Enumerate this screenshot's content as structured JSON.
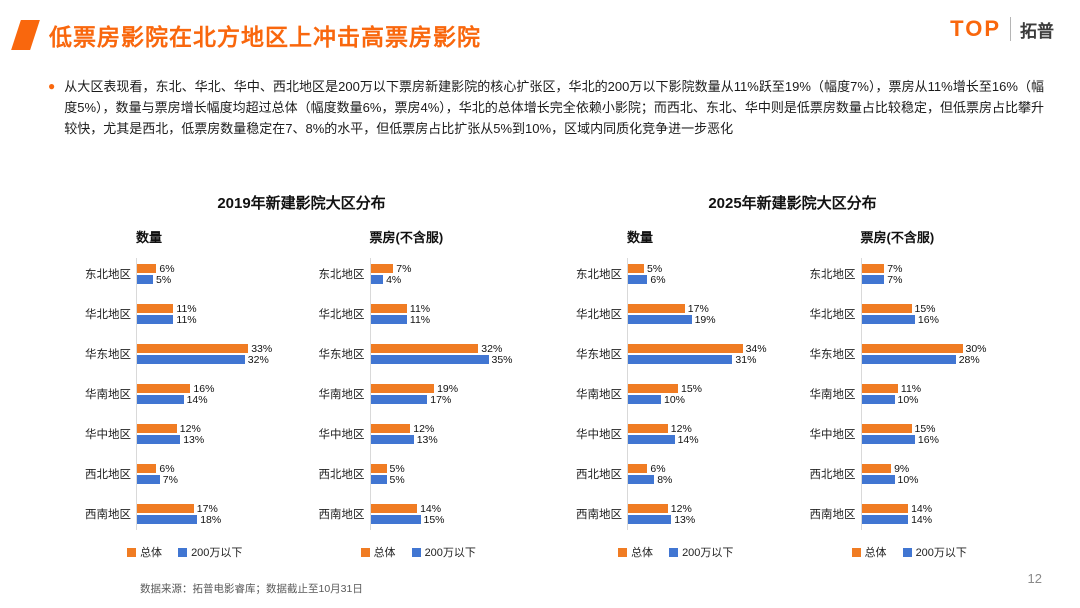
{
  "header": {
    "title": "低票房影院在北方地区上冲击高票房影院",
    "logo": {
      "brand": "TOP",
      "name_cn": "拓普"
    }
  },
  "body": {
    "bullet": "●",
    "paragraph": "从大区表现看，东北、华北、华中、西北地区是200万以下票房新建影院的核心扩张区，华北的200万以下影院数量从11%跃至19%（幅度7%），票房从11%增长至16%（幅度5%），数量与票房增长幅度均超过总体（幅度数量6%，票房4%），华北的总体增长完全依赖小影院；而西北、东北、华中则是低票房数量占比较稳定，但低票房占比攀升较快，尤其是西北，低票房数量稳定在7、8%的水平，但低票房占比扩张从5%到10%，区域内同质化竞争进一步恶化"
  },
  "colors": {
    "accent_orange": "#f9670d",
    "bar_orange": "#f07c23",
    "bar_blue": "#4176d2"
  },
  "group_titles": [
    "2019年新建影院大区分布",
    "2025年新建影院大区分布"
  ],
  "chart_data": [
    {
      "type": "bar",
      "orientation": "horizontal",
      "group": "2019年新建影院大区分布",
      "title": "数量",
      "unit": "%",
      "xlim": [
        0,
        35
      ],
      "categories": [
        "东北地区",
        "华北地区",
        "华东地区",
        "华南地区",
        "华中地区",
        "西北地区",
        "西南地区"
      ],
      "series": [
        {
          "name": "总体",
          "color": "#f07c23",
          "values": [
            6,
            11,
            33,
            16,
            12,
            6,
            17
          ]
        },
        {
          "name": "200万以下",
          "color": "#4176d2",
          "values": [
            5,
            11,
            32,
            14,
            13,
            7,
            18
          ]
        }
      ]
    },
    {
      "type": "bar",
      "orientation": "horizontal",
      "group": "2019年新建影院大区分布",
      "title": "票房(不含服)",
      "unit": "%",
      "xlim": [
        0,
        35
      ],
      "categories": [
        "东北地区",
        "华北地区",
        "华东地区",
        "华南地区",
        "华中地区",
        "西北地区",
        "西南地区"
      ],
      "series": [
        {
          "name": "总体",
          "color": "#f07c23",
          "values": [
            7,
            11,
            32,
            19,
            12,
            5,
            14
          ]
        },
        {
          "name": "200万以下",
          "color": "#4176d2",
          "values": [
            4,
            11,
            35,
            17,
            13,
            5,
            15
          ]
        }
      ]
    },
    {
      "type": "bar",
      "orientation": "horizontal",
      "group": "2025年新建影院大区分布",
      "title": "数量",
      "unit": "%",
      "xlim": [
        0,
        35
      ],
      "categories": [
        "东北地区",
        "华北地区",
        "华东地区",
        "华南地区",
        "华中地区",
        "西北地区",
        "西南地区"
      ],
      "series": [
        {
          "name": "总体",
          "color": "#f07c23",
          "values": [
            5,
            17,
            34,
            15,
            12,
            6,
            12
          ]
        },
        {
          "name": "200万以下",
          "color": "#4176d2",
          "values": [
            6,
            19,
            31,
            10,
            14,
            8,
            13
          ]
        }
      ]
    },
    {
      "type": "bar",
      "orientation": "horizontal",
      "group": "2025年新建影院大区分布",
      "title": "票房(不含服)",
      "unit": "%",
      "xlim": [
        0,
        35
      ],
      "categories": [
        "东北地区",
        "华北地区",
        "华东地区",
        "华南地区",
        "华中地区",
        "西北地区",
        "西南地区"
      ],
      "series": [
        {
          "name": "总体",
          "color": "#f07c23",
          "values": [
            7,
            15,
            30,
            11,
            15,
            9,
            14
          ]
        },
        {
          "name": "200万以下",
          "color": "#4176d2",
          "values": [
            7,
            16,
            28,
            10,
            16,
            10,
            14
          ]
        }
      ]
    }
  ],
  "legend": {
    "series": [
      "总体",
      "200万以下"
    ]
  },
  "footer": {
    "source": "数据来源：拓普电影睿库；数据截止至10月31日",
    "page_number": "12"
  }
}
